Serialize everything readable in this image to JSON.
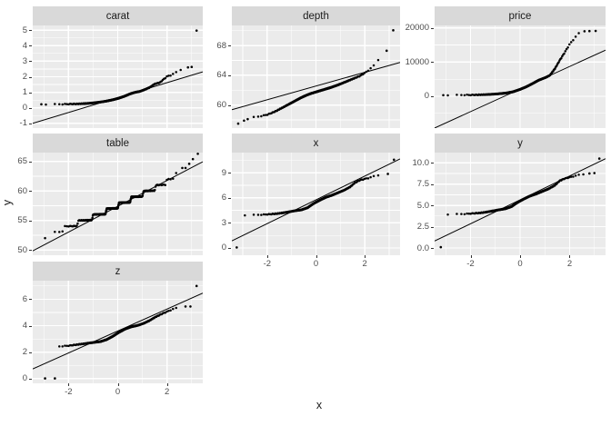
{
  "style": {
    "page_bg": "#FFFFFF",
    "panel_bg": "#EBEBEB",
    "strip_bg": "#D9D9D9",
    "grid_color": "#FFFFFF",
    "point_color": "#000000",
    "line_color": "#000000",
    "tick_mark_color": "#333333",
    "tick_label_color": "#4D4D4D",
    "title_color": "#1A1A1A"
  },
  "chart_data": {
    "type": "scatter",
    "subtype": "faceted_qq_plot",
    "title": "",
    "xlabel": "x",
    "ylabel": "y",
    "grid": "on",
    "legend": "none",
    "xlim": [
      -3.45,
      3.45
    ],
    "x_ticks": [
      -2,
      0,
      2
    ],
    "x_tick_labels": [
      "-2",
      "0",
      "2"
    ],
    "x_minor_ticks": [
      -3,
      -1,
      1,
      3
    ],
    "facets": [
      {
        "label": "carat",
        "row": 0,
        "col": 0,
        "show_x_axis": false,
        "ylim": [
          -1.3,
          5.3
        ],
        "y_ticks": [
          -1,
          0,
          1,
          2,
          3,
          4,
          5
        ],
        "y_tick_labels": [
          "-1",
          "0",
          "1",
          "2",
          "3",
          "4",
          "5"
        ],
        "y_minor_ticks": [
          -0.5,
          0.5,
          1.5,
          2.5,
          3.5,
          4.5
        ],
        "qq_line": {
          "intercept": 0.66,
          "slope": 0.48
        },
        "curve": [
          [
            -2.92,
            0.23
          ],
          [
            -2.5,
            0.23
          ],
          [
            -2.1,
            0.24
          ],
          [
            -1.7,
            0.25
          ],
          [
            -1.4,
            0.27
          ],
          [
            -1.1,
            0.3
          ],
          [
            -0.8,
            0.35
          ],
          [
            -0.5,
            0.42
          ],
          [
            -0.25,
            0.5
          ],
          [
            0,
            0.6
          ],
          [
            0.25,
            0.73
          ],
          [
            0.5,
            0.9
          ],
          [
            0.7,
            1.0
          ],
          [
            0.9,
            1.06
          ],
          [
            1.1,
            1.18
          ],
          [
            1.3,
            1.32
          ],
          [
            1.5,
            1.54
          ],
          [
            1.7,
            1.62
          ],
          [
            1.85,
            1.82
          ],
          [
            2,
            2.02
          ],
          [
            2.15,
            2.1
          ],
          [
            2.3,
            2.22
          ],
          [
            2.45,
            2.36
          ],
          [
            2.6,
            2.5
          ],
          [
            2.7,
            2.56
          ]
        ],
        "outliers": [
          [
            -3.1,
            0.23
          ],
          [
            2.85,
            2.6
          ],
          [
            3.0,
            2.63
          ],
          [
            3.2,
            4.97
          ]
        ]
      },
      {
        "label": "depth",
        "row": 0,
        "col": 1,
        "show_x_axis": false,
        "ylim": [
          56.9,
          70.7
        ],
        "y_ticks": [
          60,
          64,
          68
        ],
        "y_tick_labels": [
          "60",
          "64",
          "68"
        ],
        "y_minor_ticks": [
          58,
          62,
          66,
          70
        ],
        "qq_line": {
          "intercept": 62.55,
          "slope": 0.92
        },
        "curve": [
          [
            -2.7,
            58.3
          ],
          [
            -2.45,
            58.4
          ],
          [
            -2.2,
            58.55
          ],
          [
            -2,
            58.7
          ],
          [
            -1.8,
            58.95
          ],
          [
            -1.6,
            59.25
          ],
          [
            -1.4,
            59.6
          ],
          [
            -1.2,
            59.95
          ],
          [
            -1,
            60.3
          ],
          [
            -0.8,
            60.65
          ],
          [
            -0.6,
            61.0
          ],
          [
            -0.4,
            61.3
          ],
          [
            -0.2,
            61.55
          ],
          [
            0,
            61.75
          ],
          [
            0.3,
            62.05
          ],
          [
            0.6,
            62.35
          ],
          [
            0.9,
            62.7
          ],
          [
            1.2,
            63.1
          ],
          [
            1.5,
            63.5
          ],
          [
            1.8,
            63.9
          ],
          [
            2,
            64.3
          ],
          [
            2.2,
            64.8
          ],
          [
            2.4,
            65.4
          ],
          [
            2.6,
            66.3
          ],
          [
            2.75,
            66.9
          ]
        ],
        "outliers": [
          [
            -3.19,
            57.5
          ],
          [
            -2.95,
            57.9
          ],
          [
            -2.8,
            58.1
          ],
          [
            2.9,
            67.3
          ],
          [
            3.17,
            70.05
          ]
        ]
      },
      {
        "label": "price",
        "row": 0,
        "col": 2,
        "show_x_axis": false,
        "ylim": [
          -9300,
          20700
        ],
        "y_ticks": [
          0,
          10000,
          20000
        ],
        "y_tick_labels": [
          "0",
          "10000",
          "20000"
        ],
        "y_minor_ticks": [
          -5000,
          5000,
          15000
        ],
        "qq_line": {
          "intercept": 2100,
          "slope": 3300
        },
        "curve": [
          [
            -2.92,
            330
          ],
          [
            -2.5,
            345
          ],
          [
            -2.1,
            360
          ],
          [
            -1.8,
            395
          ],
          [
            -1.5,
            455
          ],
          [
            -1.2,
            545
          ],
          [
            -0.9,
            690
          ],
          [
            -0.6,
            890
          ],
          [
            -0.3,
            1260
          ],
          [
            0,
            2000
          ],
          [
            0.25,
            2760
          ],
          [
            0.5,
            3700
          ],
          [
            0.75,
            4700
          ],
          [
            1,
            5400
          ],
          [
            1.2,
            6100
          ],
          [
            1.4,
            8000
          ],
          [
            1.6,
            10500
          ],
          [
            1.8,
            12800
          ],
          [
            2,
            15200
          ],
          [
            2.2,
            17000
          ],
          [
            2.35,
            18300
          ],
          [
            2.45,
            18800
          ]
        ],
        "outliers": [
          [
            -3.1,
            320
          ],
          [
            2.6,
            19000
          ],
          [
            2.8,
            19050
          ],
          [
            3.05,
            19100
          ]
        ]
      },
      {
        "label": "table",
        "row": 1,
        "col": 0,
        "show_x_axis": false,
        "ylim": [
          49.1,
          66.5
        ],
        "y_ticks": [
          50,
          55,
          60,
          65
        ],
        "y_tick_labels": [
          "50",
          "55",
          "60",
          "65"
        ],
        "y_minor_ticks": [
          52.5,
          57.5,
          62.5
        ],
        "qq_line": {
          "intercept": 57.4,
          "slope": 2.19
        },
        "curve": [
          [
            -2.72,
            53
          ],
          [
            -2.25,
            53.05
          ],
          [
            -2.2,
            54
          ],
          [
            -1.65,
            54.05
          ],
          [
            -1.6,
            55
          ],
          [
            -1.05,
            55.05
          ],
          [
            -1,
            56
          ],
          [
            -0.5,
            56.05
          ],
          [
            -0.45,
            57
          ],
          [
            0,
            57.05
          ],
          [
            0.05,
            58
          ],
          [
            0.5,
            58.05
          ],
          [
            0.55,
            59
          ],
          [
            1,
            59.05
          ],
          [
            1.05,
            60
          ],
          [
            1.5,
            60.05
          ],
          [
            1.55,
            61
          ],
          [
            1.95,
            61.05
          ],
          [
            2,
            62
          ],
          [
            2.3,
            62.05
          ],
          [
            2.35,
            63
          ],
          [
            2.5,
            63.05
          ]
        ],
        "outliers": [
          [
            -2.95,
            52
          ],
          [
            2.62,
            63.9
          ],
          [
            2.75,
            63.9
          ],
          [
            2.9,
            64.6
          ],
          [
            3.05,
            65.4
          ],
          [
            3.25,
            66.3
          ]
        ]
      },
      {
        "label": "x",
        "row": 1,
        "col": 1,
        "show_x_axis": true,
        "ylim": [
          -0.87,
          11.4
        ],
        "y_ticks": [
          0,
          3,
          6,
          9
        ],
        "y_tick_labels": [
          "0",
          "3",
          "6",
          "9"
        ],
        "y_minor_ticks": [
          1.5,
          4.5,
          7.5,
          10.5
        ],
        "qq_line": {
          "intercept": 5.75,
          "slope": 1.42
        },
        "curve": [
          [
            -2.92,
            3.93
          ],
          [
            -2.5,
            3.95
          ],
          [
            -2.2,
            3.98
          ],
          [
            -1.9,
            4.03
          ],
          [
            -1.6,
            4.1
          ],
          [
            -1.35,
            4.2
          ],
          [
            -1.1,
            4.32
          ],
          [
            -0.85,
            4.45
          ],
          [
            -0.6,
            4.55
          ],
          [
            -0.35,
            4.8
          ],
          [
            -0.1,
            5.3
          ],
          [
            0.15,
            5.7
          ],
          [
            0.4,
            6.05
          ],
          [
            0.65,
            6.3
          ],
          [
            0.9,
            6.6
          ],
          [
            1.15,
            6.9
          ],
          [
            1.4,
            7.3
          ],
          [
            1.6,
            7.8
          ],
          [
            1.8,
            8.1
          ],
          [
            2,
            8.25
          ],
          [
            2.2,
            8.4
          ],
          [
            2.4,
            8.6
          ],
          [
            2.6,
            8.75
          ],
          [
            2.75,
            8.8
          ]
        ],
        "outliers": [
          [
            -3.25,
            0.06
          ],
          [
            2.95,
            8.85
          ],
          [
            3.2,
            10.55
          ]
        ]
      },
      {
        "label": "y",
        "row": 1,
        "col": 2,
        "show_x_axis": true,
        "ylim": [
          -0.85,
          11.2
        ],
        "y_ticks": [
          0,
          2.5,
          5,
          7.5,
          10
        ],
        "y_tick_labels": [
          "0.0",
          "2.5",
          "5.0",
          "7.5",
          "10.0"
        ],
        "y_minor_ticks": [
          1.25,
          3.75,
          6.25,
          8.75
        ],
        "qq_line": {
          "intercept": 5.65,
          "slope": 1.4
        },
        "curve": [
          [
            -2.92,
            3.95
          ],
          [
            -2.5,
            3.97
          ],
          [
            -2.2,
            4.0
          ],
          [
            -1.9,
            4.06
          ],
          [
            -1.6,
            4.12
          ],
          [
            -1.35,
            4.22
          ],
          [
            -1.1,
            4.35
          ],
          [
            -0.85,
            4.48
          ],
          [
            -0.6,
            4.6
          ],
          [
            -0.35,
            4.85
          ],
          [
            -0.1,
            5.35
          ],
          [
            0.15,
            5.75
          ],
          [
            0.4,
            6.1
          ],
          [
            0.65,
            6.35
          ],
          [
            0.9,
            6.65
          ],
          [
            1.15,
            6.95
          ],
          [
            1.4,
            7.35
          ],
          [
            1.6,
            7.9
          ],
          [
            1.8,
            8.15
          ],
          [
            2,
            8.3
          ],
          [
            2.2,
            8.45
          ],
          [
            2.4,
            8.6
          ],
          [
            2.6,
            8.7
          ]
        ],
        "outliers": [
          [
            -3.2,
            0.1
          ],
          [
            2.8,
            8.75
          ],
          [
            3.0,
            8.8
          ],
          [
            3.2,
            10.5
          ]
        ]
      },
      {
        "label": "z",
        "row": 2,
        "col": 0,
        "show_x_axis": true,
        "ylim": [
          -0.35,
          7.4
        ],
        "y_ticks": [
          0,
          2,
          4,
          6
        ],
        "y_tick_labels": [
          "0",
          "2",
          "4",
          "6"
        ],
        "y_minor_ticks": [
          1,
          3,
          5,
          7
        ],
        "qq_line": {
          "intercept": 3.6,
          "slope": 0.83
        },
        "curve": [
          [
            -2.45,
            2.42
          ],
          [
            -2.2,
            2.46
          ],
          [
            -1.95,
            2.5
          ],
          [
            -1.7,
            2.56
          ],
          [
            -1.45,
            2.62
          ],
          [
            -1.2,
            2.68
          ],
          [
            -0.95,
            2.74
          ],
          [
            -0.7,
            2.8
          ],
          [
            -0.45,
            2.95
          ],
          [
            -0.2,
            3.2
          ],
          [
            0.05,
            3.5
          ],
          [
            0.3,
            3.75
          ],
          [
            0.55,
            3.92
          ],
          [
            0.8,
            4.02
          ],
          [
            1.05,
            4.18
          ],
          [
            1.3,
            4.4
          ],
          [
            1.55,
            4.68
          ],
          [
            1.8,
            4.9
          ],
          [
            2.05,
            5.1
          ],
          [
            2.3,
            5.3
          ],
          [
            2.55,
            5.42
          ]
        ],
        "outliers": [
          [
            -2.95,
            0.02
          ],
          [
            -2.55,
            0.02
          ],
          [
            2.75,
            5.45
          ],
          [
            2.95,
            5.45
          ],
          [
            3.2,
            7.0
          ]
        ]
      }
    ]
  }
}
